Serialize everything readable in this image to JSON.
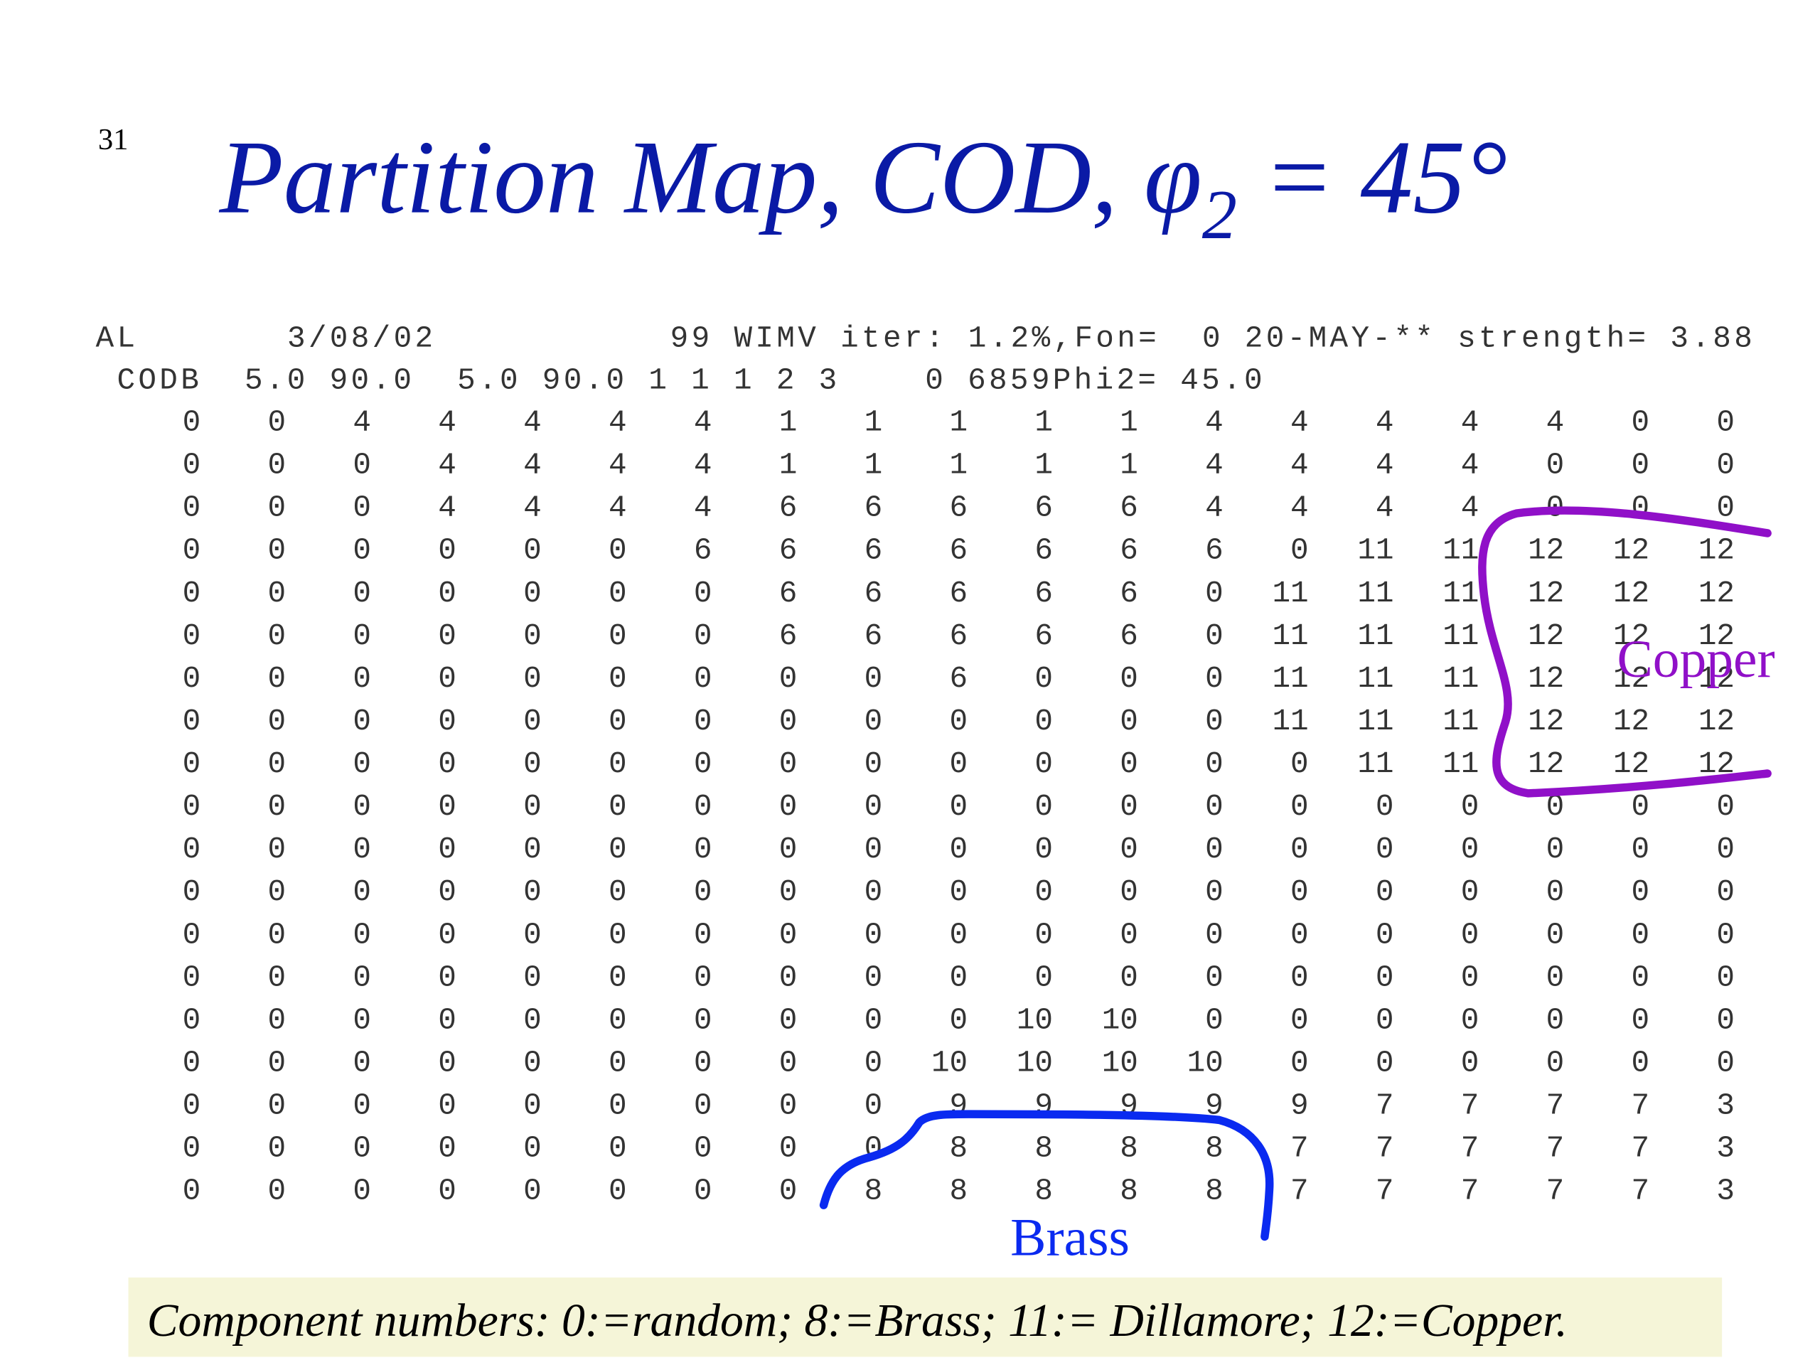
{
  "page_number": "31",
  "title": {
    "text": "Partition Map, COD, φ",
    "subscript": "2",
    "suffix": " = 45°"
  },
  "header_lines": [
    "AL       3/08/02           99 WIMV iter: 1.2%,Fon=  0 20-MAY-** strength= 3.88",
    " CODB  5.0 90.0  5.0 90.0 1 1 1 2 3    0 6859Phi2= 45.0"
  ],
  "grid": [
    [
      0,
      0,
      4,
      4,
      4,
      4,
      4,
      1,
      1,
      1,
      1,
      1,
      4,
      4,
      4,
      4,
      4,
      0,
      0
    ],
    [
      0,
      0,
      0,
      4,
      4,
      4,
      4,
      1,
      1,
      1,
      1,
      1,
      4,
      4,
      4,
      4,
      0,
      0,
      0
    ],
    [
      0,
      0,
      0,
      4,
      4,
      4,
      4,
      6,
      6,
      6,
      6,
      6,
      4,
      4,
      4,
      4,
      0,
      0,
      0
    ],
    [
      0,
      0,
      0,
      0,
      0,
      0,
      6,
      6,
      6,
      6,
      6,
      6,
      6,
      0,
      11,
      11,
      12,
      12,
      12
    ],
    [
      0,
      0,
      0,
      0,
      0,
      0,
      0,
      6,
      6,
      6,
      6,
      6,
      0,
      11,
      11,
      11,
      12,
      12,
      12
    ],
    [
      0,
      0,
      0,
      0,
      0,
      0,
      0,
      6,
      6,
      6,
      6,
      6,
      0,
      11,
      11,
      11,
      12,
      12,
      12
    ],
    [
      0,
      0,
      0,
      0,
      0,
      0,
      0,
      0,
      0,
      6,
      0,
      0,
      0,
      11,
      11,
      11,
      12,
      12,
      12
    ],
    [
      0,
      0,
      0,
      0,
      0,
      0,
      0,
      0,
      0,
      0,
      0,
      0,
      0,
      11,
      11,
      11,
      12,
      12,
      12
    ],
    [
      0,
      0,
      0,
      0,
      0,
      0,
      0,
      0,
      0,
      0,
      0,
      0,
      0,
      0,
      11,
      11,
      12,
      12,
      12
    ],
    [
      0,
      0,
      0,
      0,
      0,
      0,
      0,
      0,
      0,
      0,
      0,
      0,
      0,
      0,
      0,
      0,
      0,
      0,
      0
    ],
    [
      0,
      0,
      0,
      0,
      0,
      0,
      0,
      0,
      0,
      0,
      0,
      0,
      0,
      0,
      0,
      0,
      0,
      0,
      0
    ],
    [
      0,
      0,
      0,
      0,
      0,
      0,
      0,
      0,
      0,
      0,
      0,
      0,
      0,
      0,
      0,
      0,
      0,
      0,
      0
    ],
    [
      0,
      0,
      0,
      0,
      0,
      0,
      0,
      0,
      0,
      0,
      0,
      0,
      0,
      0,
      0,
      0,
      0,
      0,
      0
    ],
    [
      0,
      0,
      0,
      0,
      0,
      0,
      0,
      0,
      0,
      0,
      0,
      0,
      0,
      0,
      0,
      0,
      0,
      0,
      0
    ],
    [
      0,
      0,
      0,
      0,
      0,
      0,
      0,
      0,
      0,
      0,
      10,
      10,
      0,
      0,
      0,
      0,
      0,
      0,
      0
    ],
    [
      0,
      0,
      0,
      0,
      0,
      0,
      0,
      0,
      0,
      10,
      10,
      10,
      10,
      0,
      0,
      0,
      0,
      0,
      0
    ],
    [
      0,
      0,
      0,
      0,
      0,
      0,
      0,
      0,
      0,
      9,
      9,
      9,
      9,
      9,
      7,
      7,
      7,
      7,
      3
    ],
    [
      0,
      0,
      0,
      0,
      0,
      0,
      0,
      0,
      0,
      8,
      8,
      8,
      8,
      7,
      7,
      7,
      7,
      7,
      3
    ],
    [
      0,
      0,
      0,
      0,
      0,
      0,
      0,
      0,
      8,
      8,
      8,
      8,
      8,
      7,
      7,
      7,
      7,
      7,
      3
    ]
  ],
  "annotations": {
    "copper": "Copper",
    "brass": "Brass"
  },
  "footer": "Component numbers: 0:=random; 8:=Brass; 11:= Dillamore; 12:=Copper."
}
